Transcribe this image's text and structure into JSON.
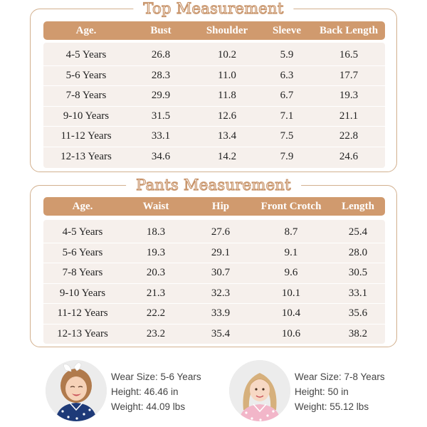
{
  "top_table": {
    "title": "Top Measurement",
    "columns": [
      "Age.",
      "Bust",
      "Shoulder",
      "Sleeve",
      "Back Length"
    ],
    "rows": [
      [
        "4-5 Years",
        "26.8",
        "10.2",
        "5.9",
        "16.5"
      ],
      [
        "5-6 Years",
        "28.3",
        "11.0",
        "6.3",
        "17.7"
      ],
      [
        "7-8 Years",
        "29.9",
        "11.8",
        "6.7",
        "19.3"
      ],
      [
        "9-10 Years",
        "31.5",
        "12.6",
        "7.1",
        "21.1"
      ],
      [
        "11-12 Years",
        "33.1",
        "13.4",
        "7.5",
        "22.8"
      ],
      [
        "12-13 Years",
        "34.6",
        "14.2",
        "7.9",
        "24.6"
      ]
    ]
  },
  "pants_table": {
    "title": "Pants Measurement",
    "columns": [
      "Age.",
      "Waist",
      "Hip",
      "Front Crotch",
      "Length"
    ],
    "rows": [
      [
        "4-5 Years",
        "18.3",
        "27.6",
        "8.7",
        "25.4"
      ],
      [
        "5-6 Years",
        "19.3",
        "29.1",
        "9.1",
        "28.0"
      ],
      [
        "7-8 Years",
        "20.3",
        "30.7",
        "9.6",
        "30.5"
      ],
      [
        "9-10 Years",
        "21.3",
        "32.3",
        "10.1",
        "33.1"
      ],
      [
        "11-12 Years",
        "22.2",
        "33.9",
        "10.4",
        "35.6"
      ],
      [
        "12-13 Years",
        "23.2",
        "35.4",
        "10.6",
        "38.2"
      ]
    ]
  },
  "models": [
    {
      "wear_size": "Wear Size: 5-6 Years",
      "height": "Height: 46.46 in",
      "weight": "Weight: 44.09 lbs",
      "outfit": "navy-polka-dot-pajamas"
    },
    {
      "wear_size": "Wear Size: 7-8 Years",
      "height": "Height: 50 in",
      "weight": "Weight: 55.12 lbs",
      "outfit": "pink-polka-dot-pajamas"
    }
  ],
  "colors": {
    "accent": "#d09a6e",
    "border": "#d2b08e",
    "row_bg": "#f6f0ec",
    "title_stroke": "#c8946a"
  }
}
